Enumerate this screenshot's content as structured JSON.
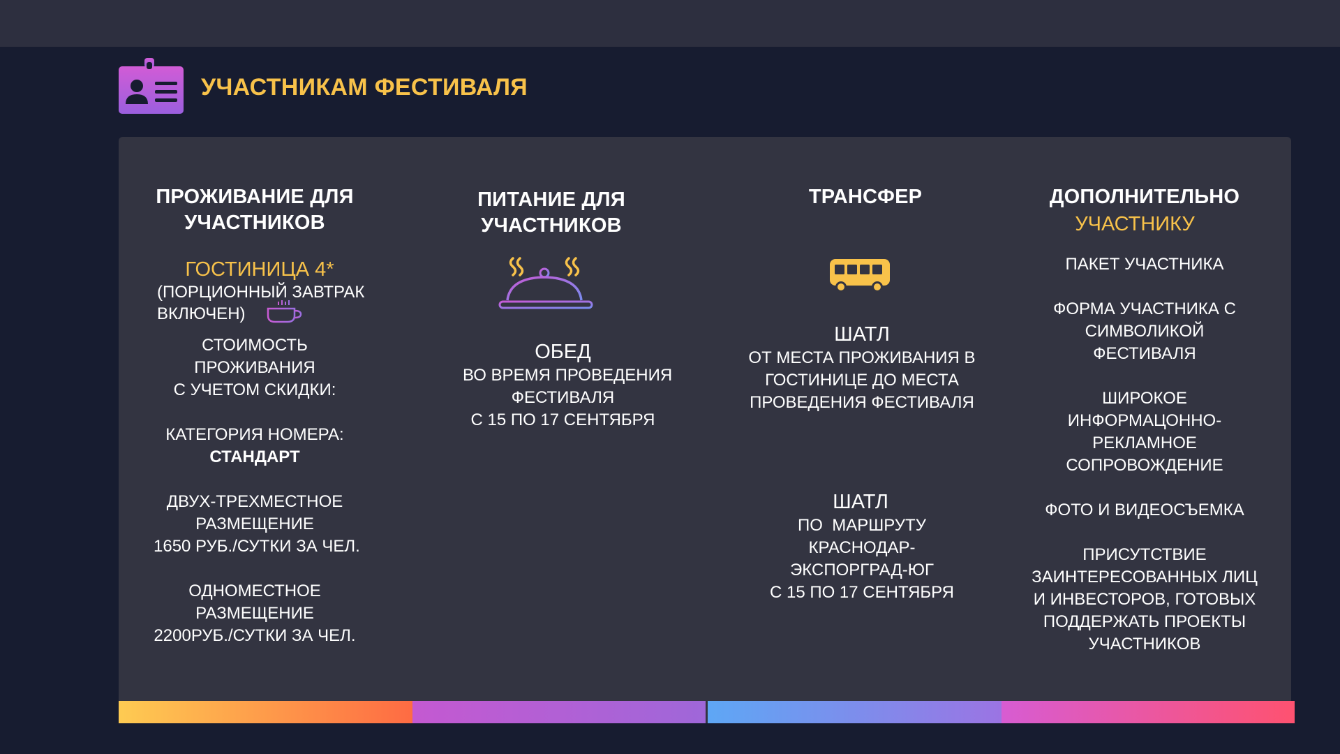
{
  "header": {
    "title": "УЧАСТНИКАМ ФЕСТИВАЛЯ",
    "icon": "id-badge-icon",
    "icon_gradient": [
      "#d15cd6",
      "#9b5fde"
    ],
    "title_color": "#f8c24a"
  },
  "colors": {
    "background": "#171c30",
    "topbar": "#2d2f3f",
    "panel": "#333441",
    "accent": "#f8c24a",
    "bar_segments": [
      "#fecb52",
      "#c459d1",
      "#5ea7f5",
      "#fe5270"
    ]
  },
  "columns": {
    "accommodation": {
      "heading_line1": "ПРОЖИВАНИЕ ДЛЯ",
      "heading_line2": "УЧАСТНИКОВ",
      "hotel": "ГОСТИНИЦА 4*",
      "breakfast_line1": "(ПОРЦИОННЫЙ ЗАВТРАК",
      "breakfast_line2": "ВКЛЮЧЕН)",
      "breakfast_icon": "coffee-cup-icon",
      "cost_line1": "СТОИМОСТЬ",
      "cost_line2": "ПРОЖИВАНИЯ",
      "cost_line3": "С УЧЕТОМ СКИДКИ:",
      "category_label": "КАТЕГОРИЯ НОМЕРА:",
      "category_value": "СТАНДАРТ",
      "double_line1": "ДВУХ-ТРЕХМЕСТНОЕ",
      "double_line2": "РАЗМЕЩЕНИЕ",
      "double_price": "1650 РУБ./СУТКИ ЗА ЧЕЛ.",
      "single_line1": "ОДНОМЕСТНОЕ",
      "single_line2": "РАЗМЕЩЕНИЕ",
      "single_price": "2200РУБ./СУТКИ ЗА ЧЕЛ."
    },
    "food": {
      "heading_line1": "ПИТАНИЕ ДЛЯ",
      "heading_line2": "УЧАСТНИКОВ",
      "icon": "serving-cloche-icon",
      "meal_title": "ОБЕД",
      "meal_line1": "ВО ВРЕМЯ ПРОВЕДЕНИЯ",
      "meal_line2": "ФЕСТИВАЛЯ",
      "meal_line3": "С 15 ПО 17 СЕНТЯБРЯ"
    },
    "transfer": {
      "heading": "ТРАНСФЕР",
      "icon": "bus-icon",
      "shuttle1_title": "ШАТЛ",
      "shuttle1_line1": "ОТ МЕСТА ПРОЖИВАНИЯ В",
      "shuttle1_line2": "ГОСТИНИЦЕ ДО МЕСТА",
      "shuttle1_line3": "ПРОВЕДЕНИЯ ФЕСТИВАЛЯ",
      "shuttle2_title": "ШАТЛ",
      "shuttle2_line1": "ПО  МАРШРУТУ",
      "shuttle2_line2": "КРАСНОДАР-",
      "shuttle2_line3": "ЭКСПОРГРАД-ЮГ",
      "shuttle2_line4": "С 15 ПО 17 СЕНТЯБРЯ"
    },
    "extra": {
      "heading_line1": "ДОПОЛНИТЕЛЬНО",
      "heading_line2": "УЧАСТНИКУ",
      "item1": "ПАКЕТ УЧАСТНИКА",
      "item2_line1": "ФОРМА УЧАСТНИКА С",
      "item2_line2": "СИМВОЛИКОЙ",
      "item2_line3": "ФЕСТИВАЛЯ",
      "item3_line1": "ШИРОКОЕ",
      "item3_line2": "ИНФОРМАЦОННО-",
      "item3_line3": "РЕКЛАМНОЕ",
      "item3_line4": "СОПРОВОЖДЕНИЕ",
      "item4": "ФОТО И ВИДЕОСЪЕМКА",
      "item5_line1": "ПРИСУТСТВИЕ",
      "item5_line2": "ЗАИНТЕРЕСОВАННЫХ ЛИЦ",
      "item5_line3": "И ИНВЕСТОРОВ, ГОТОВЫХ",
      "item5_line4": "ПОДДЕРЖАТЬ ПРОЕКТЫ",
      "item5_line5": "УЧАСТНИКОВ"
    }
  }
}
